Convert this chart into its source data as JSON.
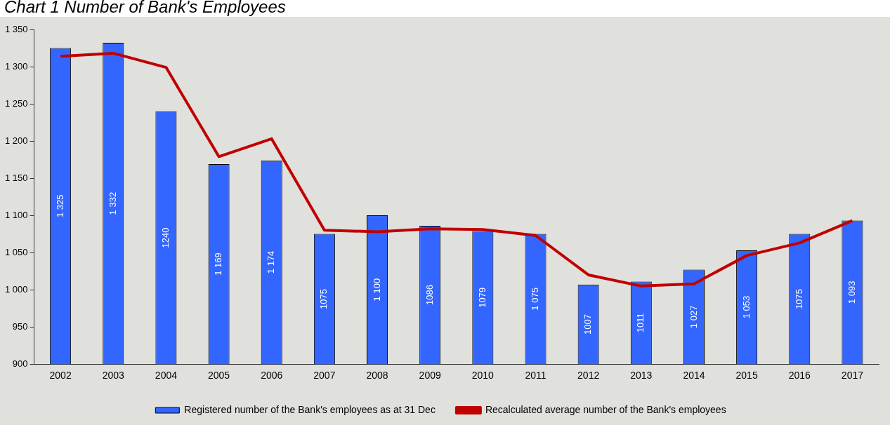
{
  "chart_data": {
    "type": "bar",
    "title": "Chart 1 Number of Bank's Employees",
    "categories": [
      "2002",
      "2003",
      "2004",
      "2005",
      "2006",
      "2007",
      "2008",
      "2009",
      "2010",
      "2011",
      "2012",
      "2013",
      "2014",
      "2015",
      "2016",
      "2017"
    ],
    "series": [
      {
        "name": "Registered number of the Bank's employees as at 31 Dec",
        "color": "#3366ff",
        "values": [
          1325,
          1332,
          1240,
          1169,
          1174,
          1075,
          1100,
          1086,
          1079,
          1075,
          1007,
          1011,
          1027,
          1053,
          1075,
          1093
        ],
        "value_labels": [
          "1 325",
          "1 332",
          "1240",
          "1 169",
          "1 174",
          "1075",
          "1 100",
          "1086",
          "1079",
          "1 075",
          "1007",
          "1011",
          "1 027",
          "1 053",
          "1075",
          "1 093"
        ]
      },
      {
        "name": "Recalculated average number of the Bank's employees",
        "type": "line",
        "color": "#c00000",
        "values": [
          1314,
          1318,
          1299,
          1179,
          1203,
          1080,
          1078,
          1082,
          1081,
          1073,
          1020,
          1005,
          1008,
          1046,
          1063,
          1093
        ]
      }
    ],
    "ylim": [
      900,
      1350
    ],
    "yticks": [
      {
        "value": 900,
        "label": "900"
      },
      {
        "value": 950,
        "label": "950"
      },
      {
        "value": 1000,
        "label": "1 000"
      },
      {
        "value": 1050,
        "label": "1 050"
      },
      {
        "value": 1100,
        "label": "1 100"
      },
      {
        "value": 1150,
        "label": "1 150"
      },
      {
        "value": 1200,
        "label": "1 200"
      },
      {
        "value": 1250,
        "label": "1 250"
      },
      {
        "value": 1300,
        "label": "1 300"
      },
      {
        "value": 1350,
        "label": "1 350"
      }
    ],
    "grid": false,
    "legend": "bottom",
    "marker": "none",
    "line_style": "solid"
  }
}
